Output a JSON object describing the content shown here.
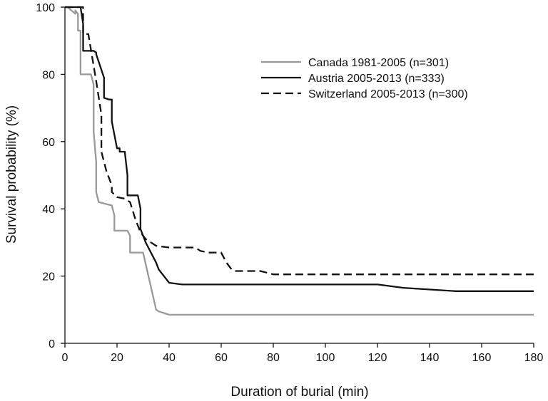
{
  "chart_data": {
    "type": "line",
    "title": "",
    "xlabel": "Duration of burial (min)",
    "ylabel": "Survival probability (%)",
    "xlim": [
      0,
      180
    ],
    "ylim": [
      0,
      100
    ],
    "xticks": [
      "0",
      "20",
      "40",
      "60",
      "80",
      "100",
      "120",
      "140",
      "160",
      "180"
    ],
    "yticks": [
      "0",
      "20",
      "40",
      "60",
      "80",
      "100"
    ],
    "legend_position": "top-right",
    "grid": false,
    "series": [
      {
        "name": "Canada 1981-2005 (n=301)",
        "color": "#999999",
        "dash": "solid",
        "x": [
          0,
          1,
          4,
          4,
          5,
          5,
          6,
          6,
          7,
          7,
          10,
          11,
          11,
          12,
          12,
          13,
          18,
          19,
          19,
          21,
          24,
          25,
          25,
          29,
          30,
          35,
          36,
          40,
          180
        ],
        "y": [
          100,
          100,
          98,
          99,
          98,
          93,
          93,
          80,
          80,
          80,
          80,
          77,
          63,
          54,
          45,
          42,
          41,
          38,
          33.5,
          33.5,
          33.5,
          32,
          27,
          27,
          27,
          10,
          9.5,
          8.5,
          8.5
        ]
      },
      {
        "name": "Austria 2005-2013 (n=333)",
        "color": "#111111",
        "dash": "solid",
        "x": [
          0,
          4,
          6,
          7,
          7,
          11,
          12,
          12,
          15,
          15,
          17,
          18,
          18,
          20,
          21,
          21,
          23,
          24,
          24,
          26,
          28,
          29,
          29,
          31,
          35,
          36,
          40,
          45,
          60,
          90,
          120,
          130,
          150,
          180
        ],
        "y": [
          100,
          100,
          100,
          95,
          87,
          87,
          86.5,
          86,
          79,
          73,
          72.5,
          72.5,
          66,
          58,
          58,
          57,
          57,
          50,
          44,
          44,
          44,
          40,
          34,
          30,
          24,
          22,
          18,
          17.5,
          17.5,
          17.5,
          17.5,
          16.5,
          15.5,
          15.5
        ]
      },
      {
        "name": "Switzerland 2005-2013 (n=300)",
        "color": "#111111",
        "dash": "dashed",
        "x": [
          0,
          6,
          7,
          7,
          9,
          12,
          14,
          14,
          16,
          17,
          18,
          18,
          20,
          23,
          25,
          27,
          29,
          31,
          35,
          40,
          45,
          50,
          52,
          55,
          60,
          62,
          64,
          65,
          75,
          80,
          90,
          120,
          150,
          180
        ],
        "y": [
          100,
          100,
          100,
          92,
          92,
          78,
          68,
          57,
          51,
          49,
          47,
          45,
          43.5,
          43,
          42,
          37,
          33,
          31,
          29,
          28.5,
          28.5,
          28.5,
          27.5,
          27,
          27,
          24,
          22,
          21.5,
          21.5,
          20.5,
          20.5,
          20.5,
          20.5,
          20.5
        ]
      }
    ]
  }
}
